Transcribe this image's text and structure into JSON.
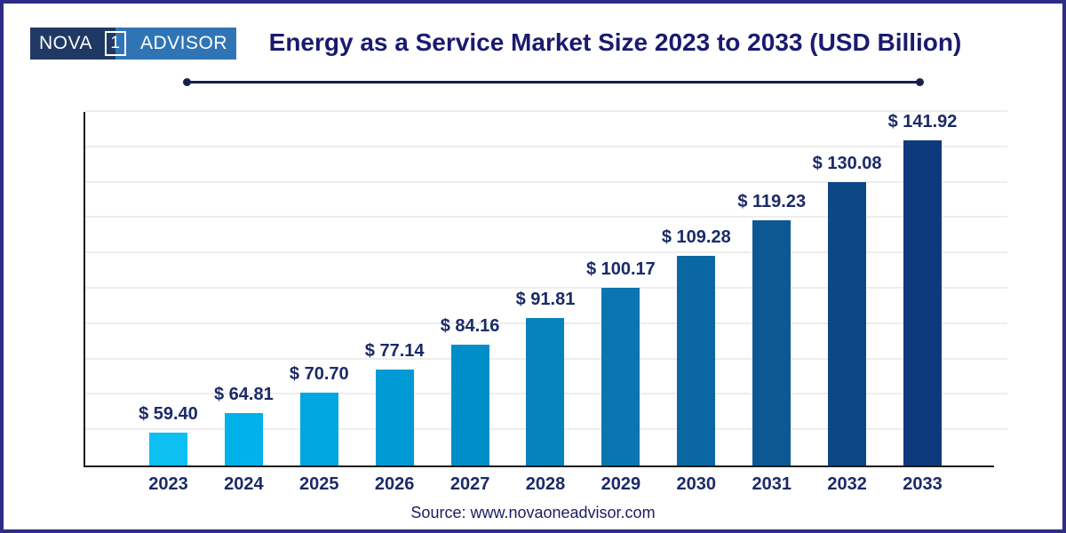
{
  "logo": {
    "part1": "NOVA",
    "boxed": "1",
    "part2": "ADVISOR",
    "navy_bg": "#203864",
    "blue_bg": "#2f75b5"
  },
  "header": {
    "title": "Energy as a Service Market Size 2023 to 2033 (USD Billion)"
  },
  "chart_data": {
    "type": "bar",
    "title": "Energy as a Service Market Size 2023 to 2033 (USD Billion)",
    "unit": "USD Billion",
    "categories": [
      "2023",
      "2024",
      "2025",
      "2026",
      "2027",
      "2028",
      "2029",
      "2030",
      "2031",
      "2032",
      "2033"
    ],
    "values": [
      59.4,
      64.81,
      70.7,
      77.14,
      84.16,
      91.81,
      100.17,
      109.28,
      119.23,
      130.08,
      141.92
    ],
    "value_labels": [
      "$ 59.40",
      "$ 64.81",
      "$ 70.70",
      "$ 77.14",
      "$ 84.16",
      "$ 91.81",
      "$ 100.17",
      "$ 109.28",
      "$ 119.23",
      "$ 130.08",
      "$ 141.92"
    ],
    "bar_colors": [
      "#0ec0f1",
      "#00b2e9",
      "#00a6df",
      "#009ad4",
      "#008ec9",
      "#0882bd",
      "#0a75b0",
      "#0b67a2",
      "#0c5894",
      "#0d4786",
      "#0e3a7c"
    ],
    "ylim": [
      50,
      150
    ],
    "gridline_step": 10,
    "grid": "horizontal, light gray, no y-axis tick labels",
    "legend": "none",
    "xlabel": "",
    "ylabel": ""
  },
  "footer": {
    "source": "Source: www.novaoneadvisor.com"
  },
  "colors": {
    "page_border": "#2e2c87",
    "title_text": "#1a1a70",
    "label_text": "#1b2a68",
    "axis": "#1c1c1c",
    "gridline": "#ededed",
    "divider": "#1b1f4e"
  }
}
